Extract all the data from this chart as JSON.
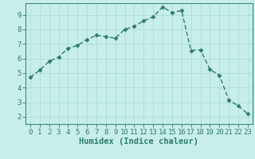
{
  "x": [
    0,
    1,
    2,
    3,
    4,
    5,
    6,
    7,
    8,
    9,
    10,
    11,
    12,
    13,
    14,
    15,
    16,
    17,
    18,
    19,
    20,
    21,
    22,
    23
  ],
  "y": [
    4.7,
    5.2,
    5.8,
    6.1,
    6.7,
    6.9,
    7.3,
    7.6,
    7.5,
    7.4,
    8.0,
    8.2,
    8.6,
    8.85,
    9.55,
    9.15,
    9.3,
    6.55,
    6.6,
    5.25,
    4.85,
    3.15,
    2.75,
    2.2
  ],
  "line_color": "#2e7b6e",
  "bg_color": "#c8eeea",
  "grid_major_color": "#aaddd8",
  "grid_minor_color": "#b8e8e4",
  "xlabel": "Humidex (Indice chaleur)",
  "xlim": [
    -0.5,
    23.5
  ],
  "ylim": [
    1.5,
    9.8
  ],
  "yticks": [
    2,
    3,
    4,
    5,
    6,
    7,
    8,
    9
  ],
  "xticks": [
    0,
    1,
    2,
    3,
    4,
    5,
    6,
    7,
    8,
    9,
    10,
    11,
    12,
    13,
    14,
    15,
    16,
    17,
    18,
    19,
    20,
    21,
    22,
    23
  ],
  "marker": "D",
  "marker_size": 2.5,
  "linewidth": 1.0,
  "xlabel_fontsize": 7.5,
  "tick_fontsize": 6.5,
  "spine_color": "#3a8a80",
  "label_color": "#2e7b6e"
}
